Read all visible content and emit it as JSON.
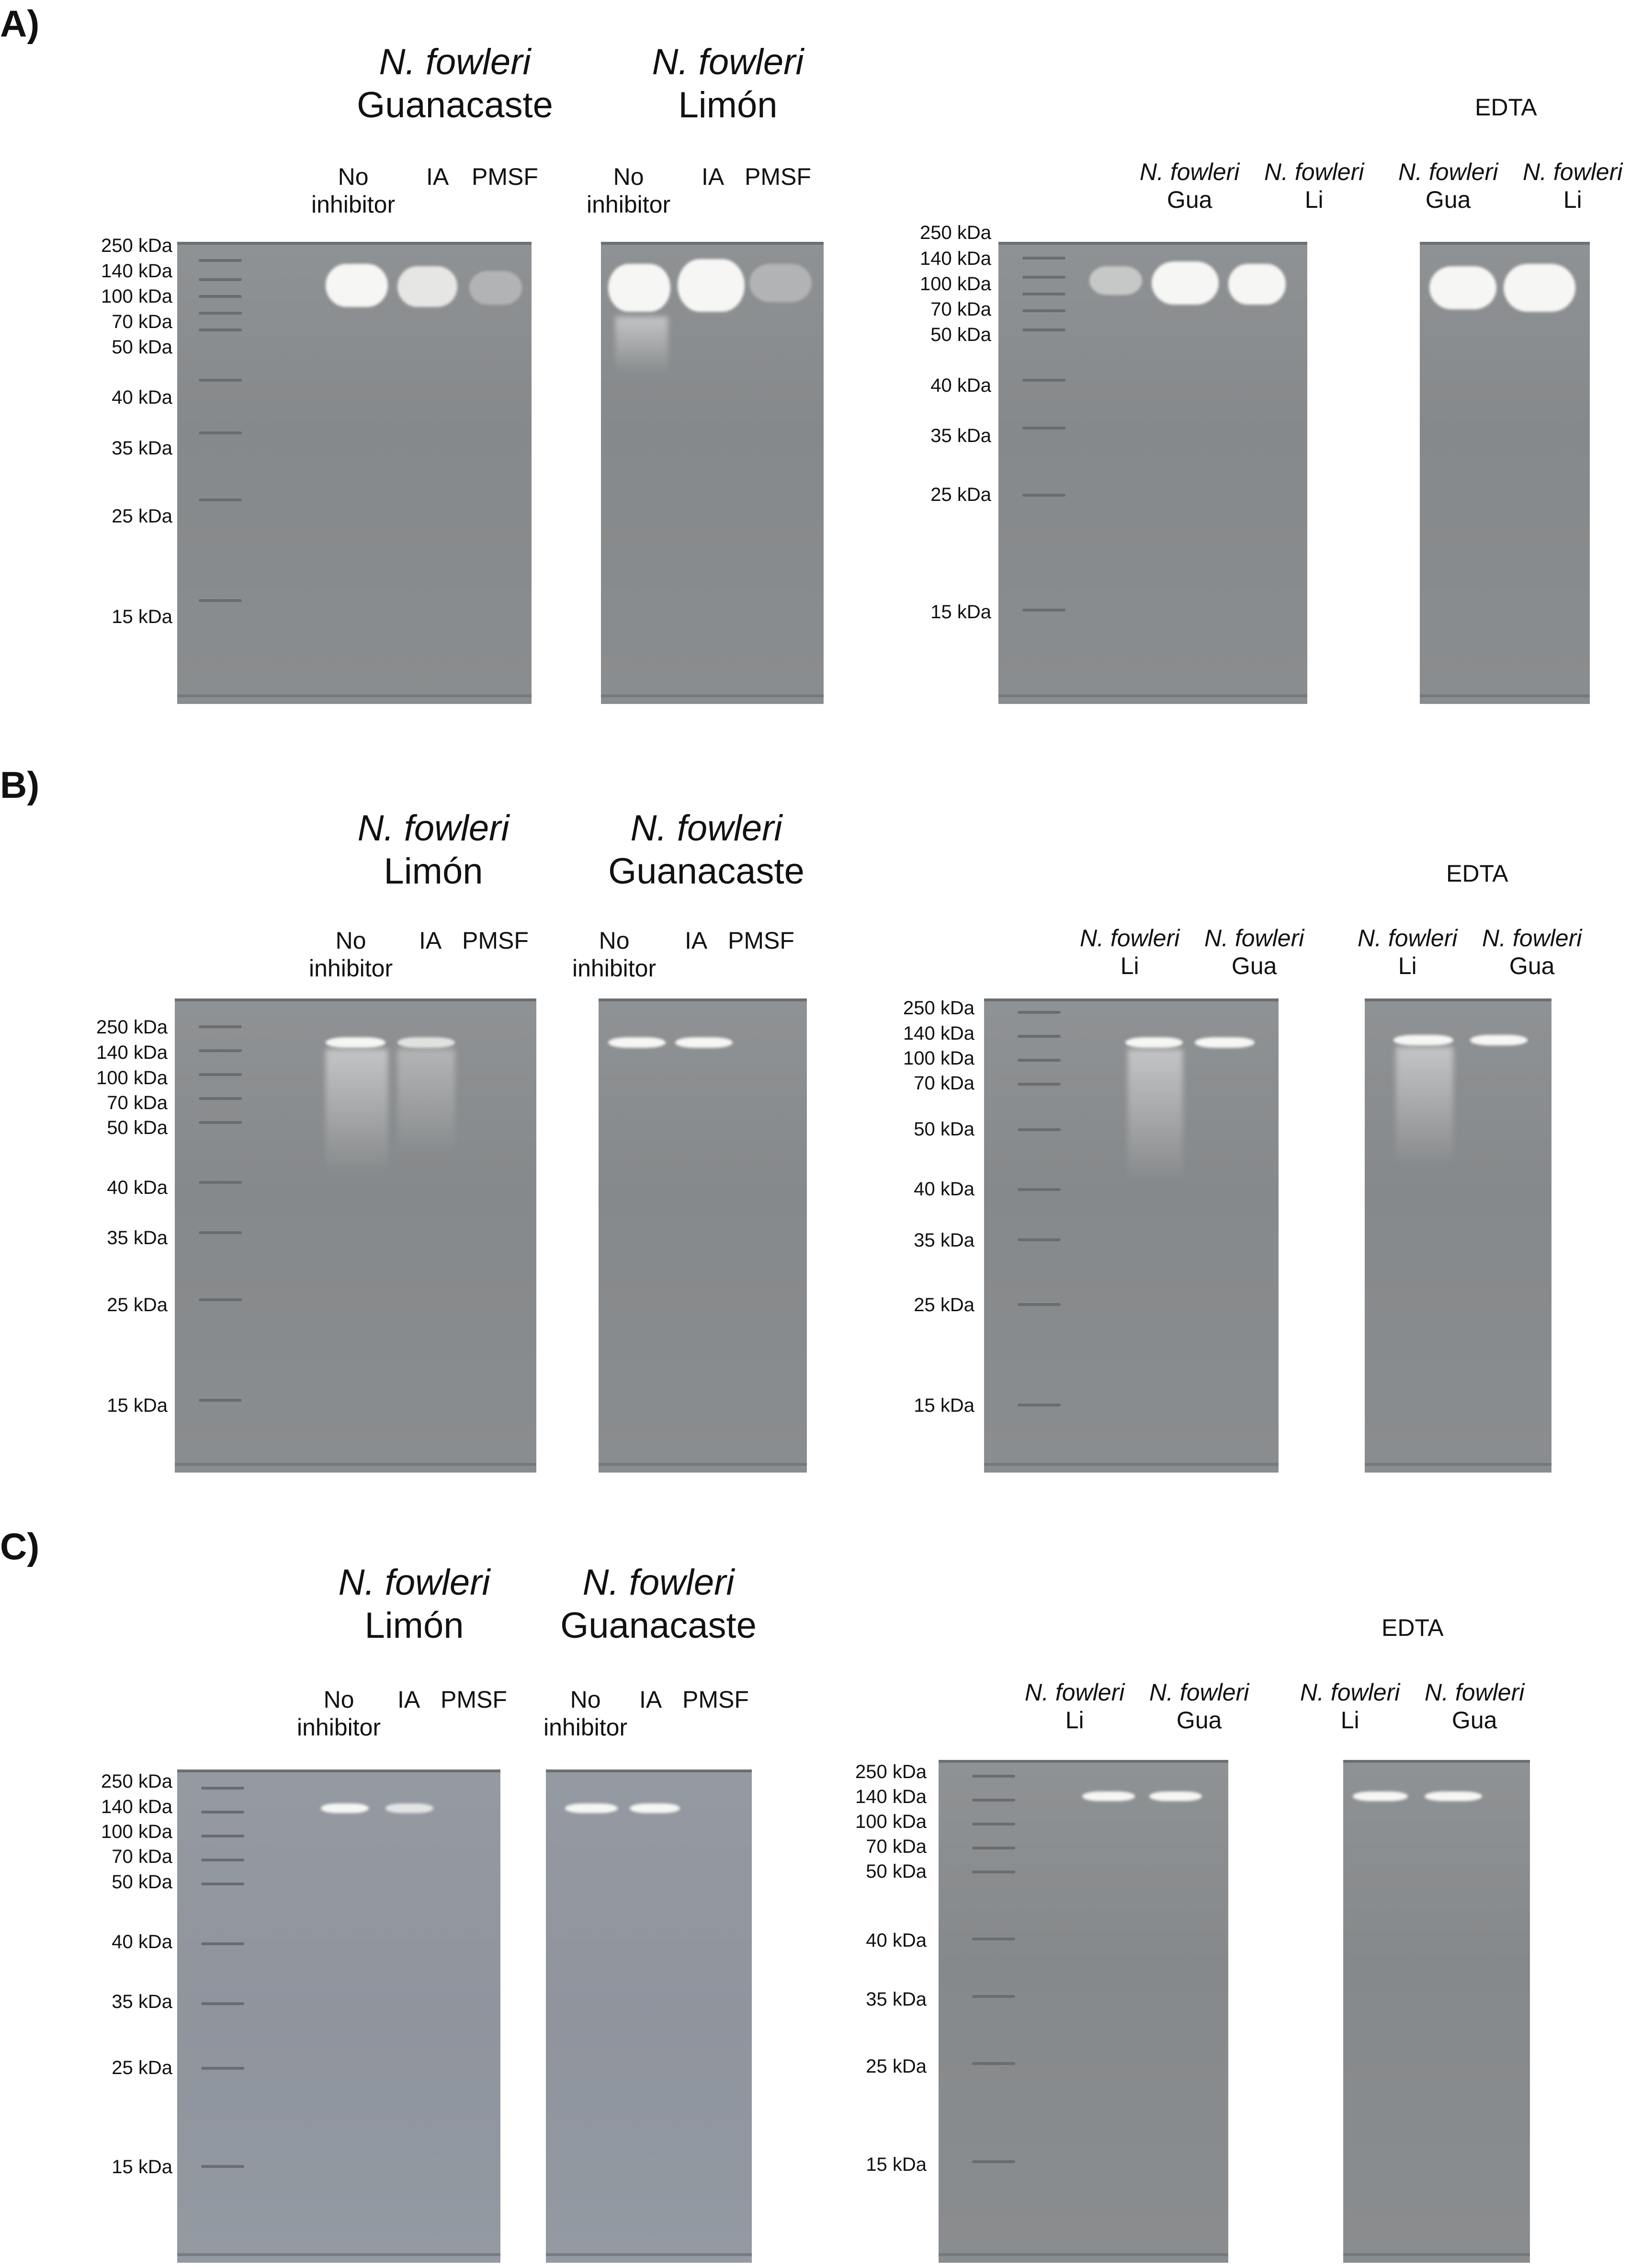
{
  "panels": [
    {
      "label": "A)",
      "groups": [
        {
          "genus": "N. fowleri",
          "location": "Guanacaste",
          "lanes": [
            {
              "l1": "No",
              "l2": "inhibitor"
            },
            {
              "l1": "IA",
              "l2": ""
            },
            {
              "l1": "PMSF",
              "l2": ""
            }
          ]
        },
        {
          "genus": "N. fowleri",
          "location": "Limón",
          "lanes": [
            {
              "l1": "No",
              "l2": "inhibitor"
            },
            {
              "l1": "IA",
              "l2": ""
            },
            {
              "l1": "PMSF",
              "l2": ""
            }
          ]
        }
      ],
      "edta": {
        "title": "EDTA",
        "left_lanes": [
          {
            "species": "N. fowleri",
            "strain": "Gua"
          },
          {
            "species": "N. fowleri",
            "strain": "Li"
          }
        ],
        "right_lanes": [
          {
            "species": "N. fowleri",
            "strain": "Gua"
          },
          {
            "species": "N. fowleri",
            "strain": "Li"
          }
        ]
      },
      "markers": [
        "250 kDa",
        "140 kDa",
        "100 kDa",
        "70 kDa",
        "50 kDa",
        "40 kDa",
        "35 kDa",
        "25 kDa",
        "15 kDa"
      ]
    },
    {
      "label": "B)",
      "groups": [
        {
          "genus": "N. fowleri",
          "location": "Limón",
          "lanes": [
            {
              "l1": "No",
              "l2": "inhibitor"
            },
            {
              "l1": "IA",
              "l2": ""
            },
            {
              "l1": "PMSF",
              "l2": ""
            }
          ]
        },
        {
          "genus": "N. fowleri",
          "location": "Guanacaste",
          "lanes": [
            {
              "l1": "No",
              "l2": "inhibitor"
            },
            {
              "l1": "IA",
              "l2": ""
            },
            {
              "l1": "PMSF",
              "l2": ""
            }
          ]
        }
      ],
      "edta": {
        "title": "EDTA",
        "left_lanes": [
          {
            "species": "N. fowleri",
            "strain": "Li"
          },
          {
            "species": "N. fowleri",
            "strain": "Gua"
          }
        ],
        "right_lanes": [
          {
            "species": "N. fowleri",
            "strain": "Li"
          },
          {
            "species": "N. fowleri",
            "strain": "Gua"
          }
        ]
      },
      "markers": [
        "250 kDa",
        "140 kDa",
        "100 kDa",
        "70 kDa",
        "50 kDa",
        "40 kDa",
        "35 kDa",
        "25 kDa",
        "15 kDa"
      ]
    },
    {
      "label": "C)",
      "groups": [
        {
          "genus": "N. fowleri",
          "location": "Limón",
          "lanes": [
            {
              "l1": "No",
              "l2": "inhibitor"
            },
            {
              "l1": "IA",
              "l2": ""
            },
            {
              "l1": "PMSF",
              "l2": ""
            }
          ]
        },
        {
          "genus": "N. fowleri",
          "location": "Guanacaste",
          "lanes": [
            {
              "l1": "No",
              "l2": "inhibitor"
            },
            {
              "l1": "IA",
              "l2": ""
            },
            {
              "l1": "PMSF",
              "l2": ""
            }
          ]
        }
      ],
      "edta": {
        "title": "EDTA",
        "left_lanes": [
          {
            "species": "N. fowleri",
            "strain": "Li"
          },
          {
            "species": "N. fowleri",
            "strain": "Gua"
          }
        ],
        "right_lanes": [
          {
            "species": "N. fowleri",
            "strain": "Li"
          },
          {
            "species": "N. fowleri",
            "strain": "Gua"
          }
        ]
      },
      "markers": [
        "250 kDa",
        "140 kDa",
        "100 kDa",
        "70 kDa",
        "50 kDa",
        "40 kDa",
        "35 kDa",
        "25 kDa",
        "15 kDa"
      ]
    }
  ]
}
